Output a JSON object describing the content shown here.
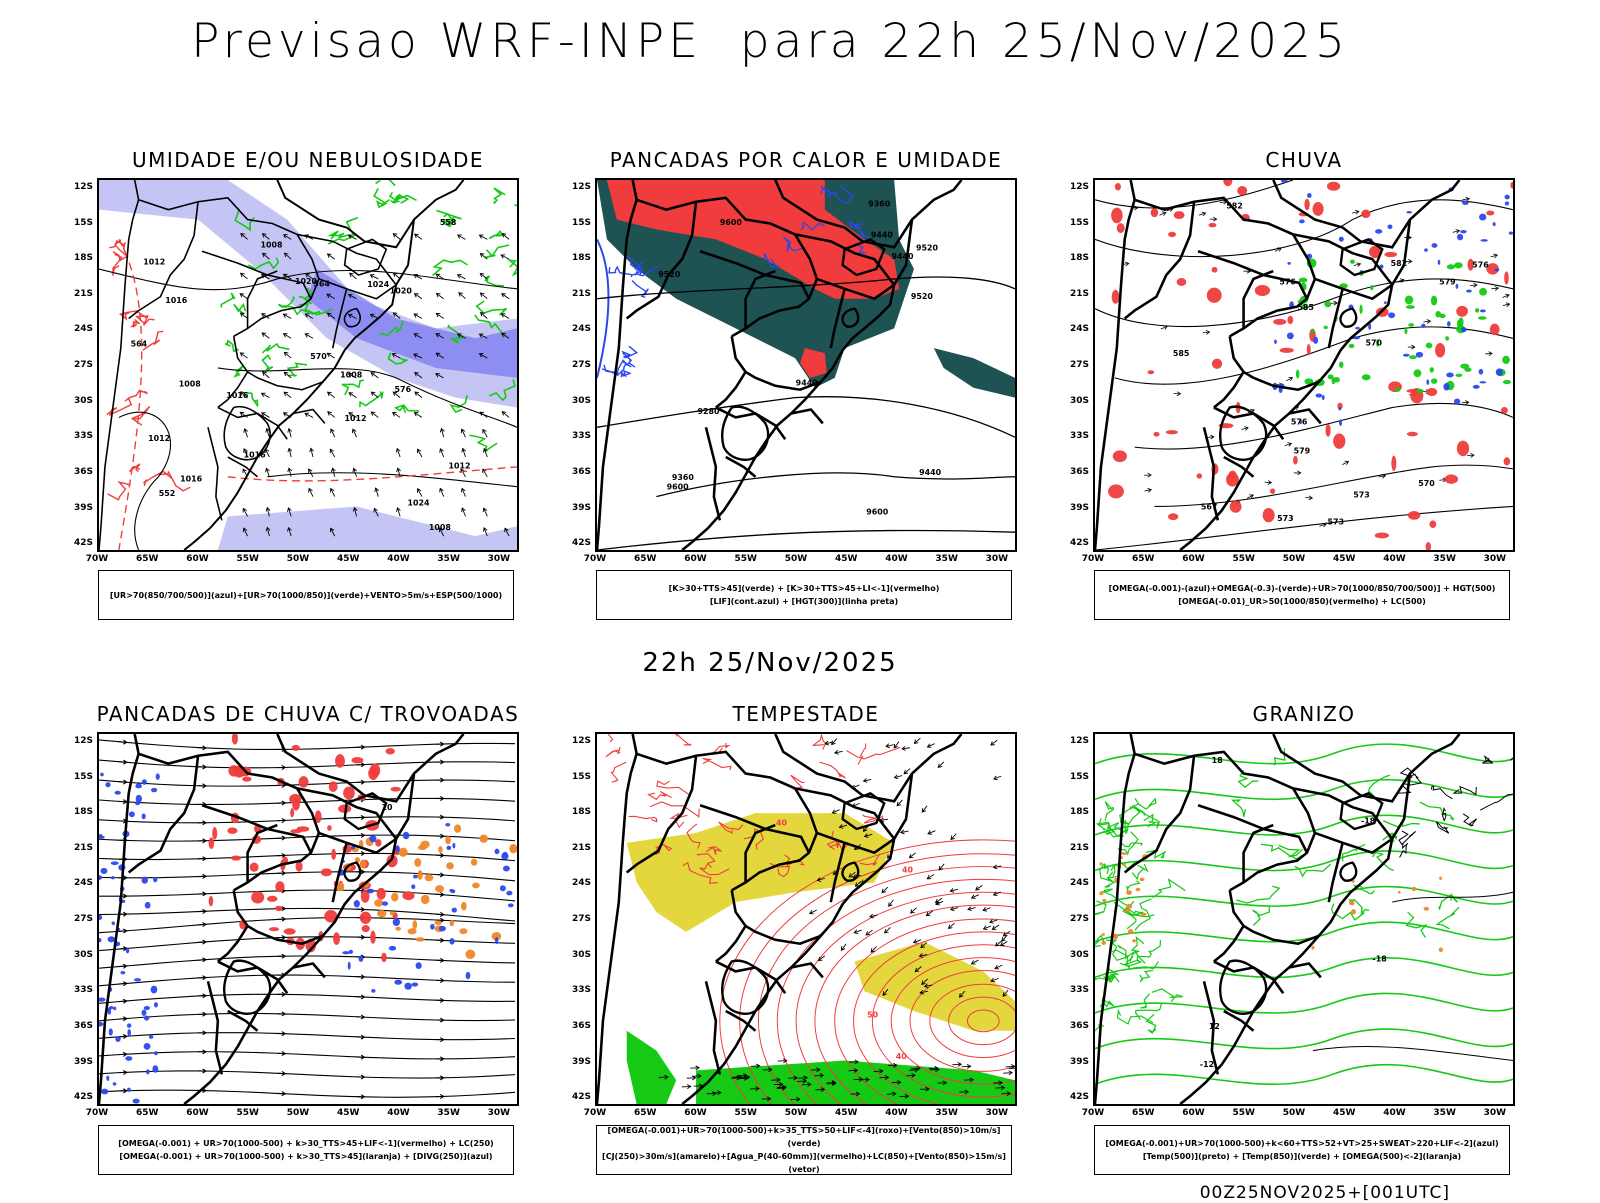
{
  "main_title": "Previsao WRF-INPE  para 22h 25/Nov/2025",
  "middle_title": "22h 25/Nov/2025",
  "footer_run": "00Z25NOV2025+[001UTC]",
  "axes": {
    "lat_labels": [
      "12S",
      "15S",
      "18S",
      "21S",
      "24S",
      "27S",
      "30S",
      "33S",
      "36S",
      "39S",
      "42S"
    ],
    "lon_labels": [
      "70W",
      "65W",
      "60W",
      "55W",
      "50W",
      "45W",
      "40W",
      "35W",
      "30W"
    ]
  },
  "colors": {
    "blue_shade": "#b6b6f2",
    "blue_shade_dark": "#7a7af0",
    "green": "#15c915",
    "red": "#f03c3c",
    "dark_teal": "#1f5252",
    "yellow": "#e1d329",
    "orange": "#f0862a",
    "blue": "#2a48ee",
    "black": "#000000"
  },
  "panels": [
    {
      "title": "UMIDADE E/OU NEBULOSIDADE",
      "legend": [
        "[UR>70(850/700/500)](azul)+[UR>70(1000/850)](verde)+VENTO>5m/s+ESP(500/1000)"
      ],
      "contour_labels": [
        "1008",
        "1008",
        "1012",
        "1012",
        "1012",
        "1016",
        "1016",
        "1016",
        "1020",
        "1020",
        "1024",
        "1024",
        "1016",
        "1008",
        "1008",
        "1012",
        "576",
        "570",
        "564",
        "552",
        "558",
        "564"
      ]
    },
    {
      "title": "PANCADAS POR CALOR E UMIDADE",
      "legend": [
        "[K>30+TTS>45](verde) + [K>30+TTS>45+LI<-1](vermelho)",
        "[LIF](cont.azul) + [HGT(300)](linha preta)"
      ],
      "contour_labels": [
        "9600",
        "9520",
        "9600",
        "9520",
        "9520",
        "9600",
        "9440",
        "9440",
        "9440",
        "9440",
        "9360",
        "9360",
        "9280"
      ]
    },
    {
      "title": "CHUVA",
      "legend": [
        "[OMEGA(-0.001)-(azul)+OMEGA(-0.3)-(verde)+UR>70(1000/850/700/500)] + HGT(500)",
        "[OMEGA(-0.01)_UR>50(1000/850)(vermelho) + LC(500)"
      ],
      "contour_labels": [
        "585",
        "582",
        "585",
        "582",
        "579",
        "576",
        "576",
        "579",
        "573",
        "573",
        "570",
        "567",
        "576",
        "573",
        "570"
      ]
    },
    {
      "title": "PANCADAS DE CHUVA C/ TROVOADAS",
      "legend": [
        "[OMEGA(-0.001) + UR>70(1000-500) + k>30_TTS>45+LIF<-1](vermelho) + LC(250)",
        "[OMEGA(-0.001) + UR>70(1000-500) + k>30_TTS>45](laranja) + [DIVG(250)](azul)"
      ],
      "contour_labels": [
        "10"
      ]
    },
    {
      "title": "TEMPESTADE",
      "legend": [
        "[OMEGA(-0.001)+UR>70(1000-500)+k>35_TTS>50+LIF<-4](roxo)+[Vento(850)>10m/s](verde)",
        "[CJ(250)>30m/s](amarelo)+[Agua_P(40-60mm)](vermelho)+LC(850)+[Vento(850)>15m/s](vetor)"
      ],
      "contour_labels": [
        "40",
        "40",
        "40",
        "50"
      ]
    },
    {
      "title": "GRANIZO",
      "legend": [
        "[OMEGA(-0.001)+UR>70(1000-500)+k<60+TTS>52+VT>25+SWEAT>220+LIF<-2](azul)",
        "[Temp(500)](preto) + [Temp(850)](verde) + [OMEGA(500)<-2](laranja)"
      ],
      "contour_labels": [
        "-12",
        "-18",
        "-18",
        "18",
        "12"
      ]
    }
  ]
}
